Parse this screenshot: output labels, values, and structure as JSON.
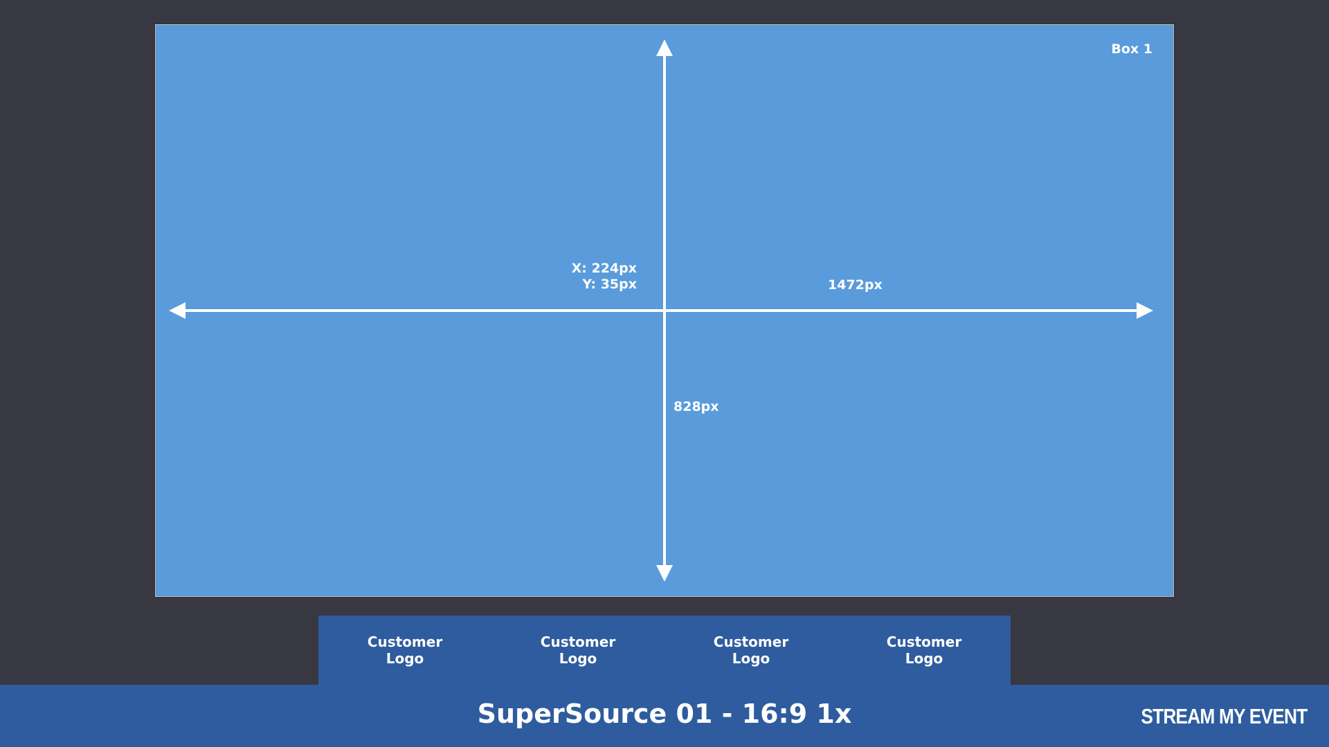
{
  "box": {
    "label": "Box 1",
    "position_label_x": "X: 224px",
    "position_label_y": "Y: 35px",
    "width_label": "1472px",
    "height_label": "828px",
    "fill_color": "#5a9bdb"
  },
  "logos": [
    {
      "label": "Customer Logo"
    },
    {
      "label": "Customer Logo"
    },
    {
      "label": "Customer Logo"
    },
    {
      "label": "Customer Logo"
    }
  ],
  "footer": {
    "title": "SuperSource 01 - 16:9 1x",
    "brand": "STREAM MY EVENT",
    "bar_color": "#2e5c9e"
  },
  "background_color": "#373842"
}
